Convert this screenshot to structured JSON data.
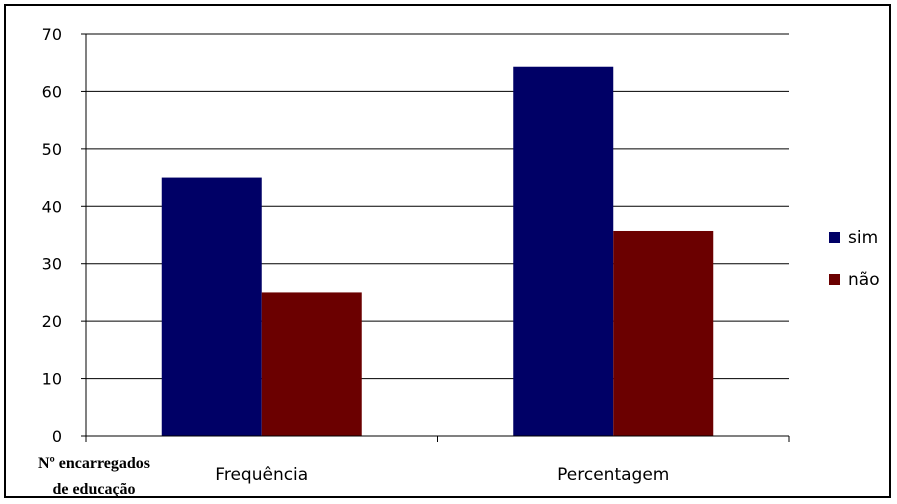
{
  "chart_data": {
    "type": "bar",
    "title": "",
    "xlabel": "Nº encarregados de educação",
    "xlabel_lines": [
      "Nº encarregados",
      "de educação"
    ],
    "ylabel": "",
    "categories": [
      "Frequência",
      "Percentagem"
    ],
    "series": [
      {
        "name": "sim",
        "values": [
          45,
          64.3
        ],
        "color": "#000066"
      },
      {
        "name": "não",
        "values": [
          25,
          35.7
        ],
        "color": "#6B0000"
      }
    ],
    "ylim": [
      0,
      70
    ],
    "yticks": [
      "0",
      "10",
      "20",
      "30",
      "40",
      "50",
      "60",
      "70"
    ],
    "grid": true,
    "legend_position": "right"
  }
}
